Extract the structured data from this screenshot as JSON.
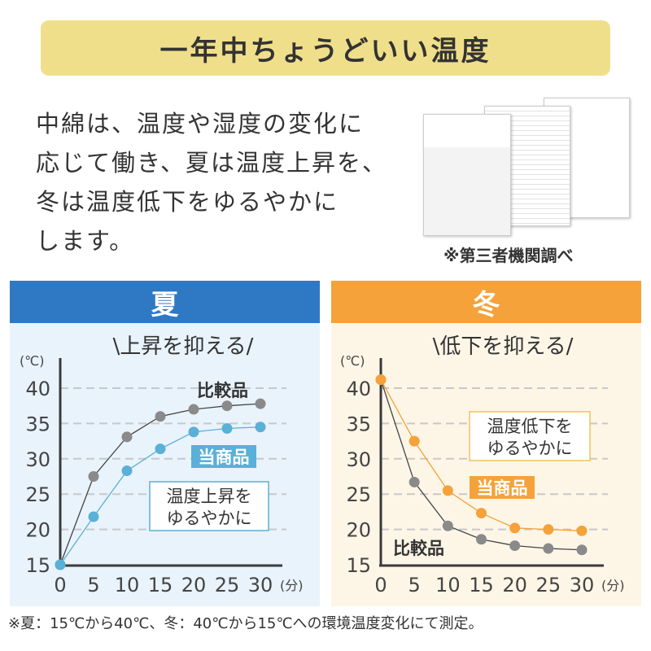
{
  "banner": {
    "title": "一年中ちょうどいい温度"
  },
  "intro": {
    "lines": [
      "中綿は、温度や湿度の変化に",
      "応じて働き、夏は温度上昇を、",
      "冬は温度低下をゆるやかに",
      "します。"
    ]
  },
  "caption": "※第三者機関調べ",
  "footer": "※夏：15℃から40℃、冬：40℃から15℃への環境温度変化にて測定。",
  "colors": {
    "summer": "#2f78c4",
    "winter": "#f5a23a",
    "summer_series": "#5ab0d6",
    "winter_series": "#f5a23a",
    "compare": "#888888"
  },
  "chart_data": [
    {
      "type": "line",
      "panel_title": "夏",
      "title": "\\上昇を抑える/",
      "ylabel": "(℃)",
      "xlabel": "(分)",
      "x": [
        0,
        5,
        10,
        15,
        20,
        25,
        30
      ],
      "ylim": [
        15,
        40
      ],
      "yticks": [
        "15",
        "20",
        "25",
        "30",
        "35",
        "40"
      ],
      "xticks": [
        "0",
        "5",
        "10",
        "15",
        "20",
        "25",
        "30"
      ],
      "grid": true,
      "series": [
        {
          "name": "比較品",
          "values": [
            15,
            27.5,
            33.1,
            36,
            37,
            37.5,
            37.8
          ]
        },
        {
          "name": "当商品",
          "values": [
            15,
            21.8,
            28.3,
            31.4,
            33.8,
            34.3,
            34.5
          ]
        }
      ],
      "annotation": [
        "温度上昇を",
        "ゆるやかに"
      ]
    },
    {
      "type": "line",
      "panel_title": "冬",
      "title": "\\低下を抑える/",
      "ylabel": "(℃)",
      "xlabel": "(分)",
      "x": [
        0,
        5,
        10,
        15,
        20,
        25,
        30
      ],
      "ylim": [
        15,
        40
      ],
      "yticks": [
        "15",
        "20",
        "25",
        "30",
        "35",
        "40"
      ],
      "xticks": [
        "0",
        "5",
        "10",
        "15",
        "20",
        "25",
        "30"
      ],
      "grid": true,
      "series": [
        {
          "name": "比較品",
          "values": [
            41.2,
            26.7,
            20.5,
            18.6,
            17.7,
            17.3,
            17.1
          ]
        },
        {
          "name": "当商品",
          "values": [
            41.2,
            32.5,
            25.5,
            22.3,
            20.2,
            20.0,
            19.8
          ]
        }
      ],
      "annotation": [
        "温度低下を",
        "ゆるやかに"
      ]
    }
  ]
}
